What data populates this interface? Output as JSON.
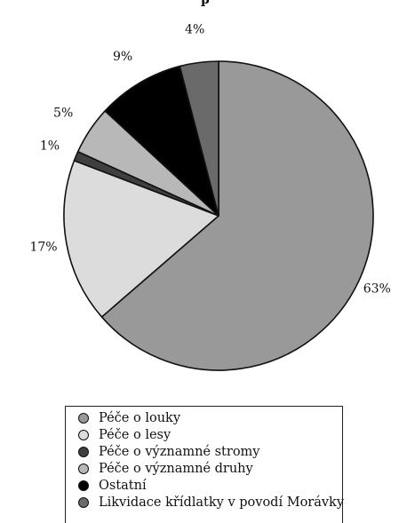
{
  "chart_data": {
    "type": "pie",
    "title": "",
    "slices": [
      {
        "label": "Péče o louky",
        "value": 63,
        "value_label": "63%",
        "color": "#999999"
      },
      {
        "label": "Péče o lesy",
        "value": 17,
        "value_label": "17%",
        "color": "#dcdcdc"
      },
      {
        "label": "Péče o významné stromy",
        "value": 1,
        "value_label": "1%",
        "color": "#3f3f3f"
      },
      {
        "label": "Péče o významné druhy",
        "value": 5,
        "value_label": "5%",
        "color": "#b8b8b8"
      },
      {
        "label": "Ostatní",
        "value": 9,
        "value_label": "9%",
        "color": "#000000"
      },
      {
        "label": "Likvidace křídlatky v povodí Morávky",
        "value": 4,
        "value_label": "4%",
        "color": "#6a6a6a"
      }
    ],
    "start_direction": "12 o'clock",
    "order": "clockwise",
    "legend_position": "bottom"
  },
  "partial_title_fragment": "p"
}
